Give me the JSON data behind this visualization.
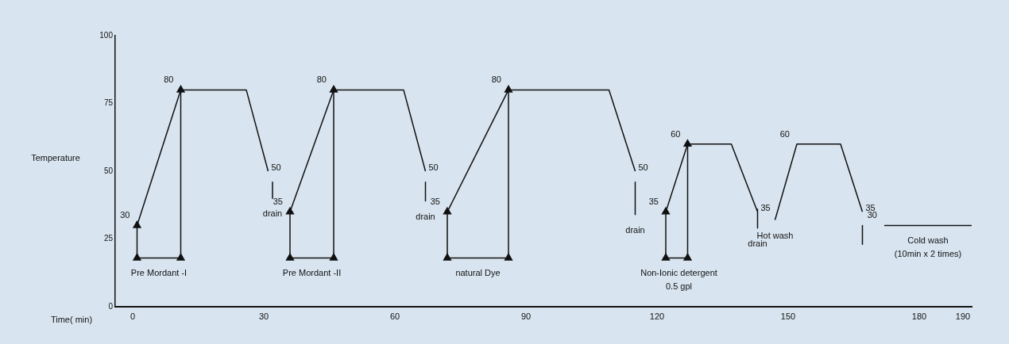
{
  "chart_data": {
    "type": "line",
    "xlabel": "Time( min)",
    "ylabel": "Temperature",
    "xlim": [
      -4,
      192
    ],
    "xticks": [
      0,
      30,
      60,
      90,
      120,
      150,
      180,
      190
    ],
    "ylim": [
      0,
      100
    ],
    "yticks": [
      0,
      25,
      50,
      75,
      100
    ],
    "grid": false,
    "legend": false,
    "line_style": "solid",
    "series": [
      {
        "color": "#111111",
        "marker": "none",
        "x": [
          1,
          11,
          26,
          31,
          null,
          32,
          32,
          null,
          36,
          46,
          62,
          67,
          null,
          67,
          67,
          null,
          72,
          86,
          109,
          115,
          null,
          115,
          115,
          null,
          122,
          127,
          137,
          143,
          null,
          143,
          143,
          null,
          147,
          152,
          162,
          167,
          null,
          167,
          167,
          null,
          172,
          192
        ],
        "values": [
          30,
          80,
          80,
          50,
          null,
          46,
          40,
          null,
          35,
          80,
          80,
          50,
          null,
          46,
          39,
          null,
          35,
          80,
          80,
          50,
          null,
          46,
          34,
          null,
          35,
          60,
          60,
          35,
          null,
          36,
          29,
          null,
          32,
          60,
          60,
          35,
          null,
          30,
          23,
          null,
          30,
          30
        ]
      },
      {
        "color": "#111111",
        "marker": "triangle",
        "x": [
          1,
          1,
          11,
          11,
          null,
          36,
          36,
          46,
          46,
          null,
          72,
          72,
          86,
          86,
          null,
          122,
          122,
          127,
          127
        ],
        "values": [
          30,
          18,
          18,
          80,
          null,
          35,
          18,
          18,
          80,
          null,
          35,
          18,
          18,
          80,
          null,
          35,
          18,
          18,
          60
        ]
      }
    ],
    "annotations": [
      {
        "text": "30",
        "x": 1,
        "y": 30
      },
      {
        "text": "80",
        "x": 11,
        "y": 80
      },
      {
        "text": "50",
        "x": 31,
        "y": 50
      },
      {
        "text": "drain",
        "x": 32,
        "y": 40
      },
      {
        "text": "Pre Mordant -I",
        "x": 6,
        "y": 18
      },
      {
        "text": "35",
        "x": 36,
        "y": 35
      },
      {
        "text": "80",
        "x": 46,
        "y": 80
      },
      {
        "text": "Pre Mordant -II",
        "x": 41,
        "y": 18
      },
      {
        "text": "50",
        "x": 67,
        "y": 50
      },
      {
        "text": "35",
        "x": 72,
        "y": 35
      },
      {
        "text": "drain",
        "x": 67,
        "y": 39
      },
      {
        "text": "natural Dye",
        "x": 79,
        "y": 18
      },
      {
        "text": "80",
        "x": 86,
        "y": 80
      },
      {
        "text": "50",
        "x": 115,
        "y": 50
      },
      {
        "text": "35",
        "x": 122,
        "y": 35
      },
      {
        "text": "drain",
        "x": 115,
        "y": 34
      },
      {
        "text": "60",
        "x": 127,
        "y": 60
      },
      {
        "text": "Non-Ionic detergent\n0.5 gpl",
        "x": 125,
        "y": 18
      },
      {
        "text": "drain",
        "x": 143,
        "y": 29
      },
      {
        "text": "35",
        "x": 143,
        "y": 35
      },
      {
        "text": "60",
        "x": 152,
        "y": 60
      },
      {
        "text": "Hot wash",
        "x": 147,
        "y": 32
      },
      {
        "text": "35",
        "x": 167,
        "y": 35
      },
      {
        "text": "30",
        "x": 172,
        "y": 30
      },
      {
        "text": "Cold wash\n(10min x 2 times)",
        "x": 182,
        "y": 30
      }
    ]
  }
}
